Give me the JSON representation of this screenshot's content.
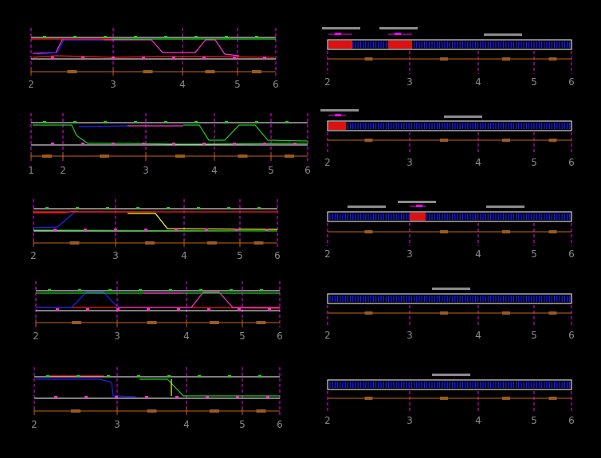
{
  "colors": {
    "background": "#000000",
    "frame": "#ffffff",
    "grid_magenta": "#ff00ff",
    "dim_orange": "#c8690a",
    "dim_tag": "#9a5a1e",
    "label_gray": "#8a8a8a",
    "tag_gray": "#8c8c8c",
    "red": "#ff1a1a",
    "blue": "#2222ff",
    "green": "#22cc22",
    "yellow": "#ffff22",
    "pink": "#ff33cc",
    "rebar_blue": "#1a1aff",
    "rebar_red": "#dd1111"
  },
  "left_panels": [
    {
      "id": "elevation-1",
      "axis_labels": [
        "2",
        "3",
        "4",
        "5",
        "6"
      ]
    },
    {
      "id": "elevation-2",
      "axis_labels": [
        "1",
        "2",
        "3",
        "4",
        "5",
        "6"
      ]
    },
    {
      "id": "elevation-3",
      "axis_labels": [
        "2",
        "3",
        "4",
        "5",
        "6"
      ]
    },
    {
      "id": "elevation-4",
      "axis_labels": [
        "2",
        "3",
        "4",
        "5",
        "6"
      ]
    },
    {
      "id": "elevation-5",
      "axis_labels": [
        "2",
        "3",
        "4",
        "5",
        "6"
      ]
    }
  ],
  "right_panels": [
    {
      "id": "section-1",
      "axis_labels": [
        "2",
        "3",
        "4",
        "5",
        "6"
      ]
    },
    {
      "id": "section-2",
      "axis_labels": [
        "2",
        "3",
        "4",
        "5",
        "6"
      ]
    },
    {
      "id": "section-3",
      "axis_labels": [
        "2",
        "3",
        "4",
        "5",
        "6"
      ]
    },
    {
      "id": "section-4",
      "axis_labels": [
        "2",
        "3",
        "4",
        "5",
        "6"
      ]
    },
    {
      "id": "section-5",
      "axis_labels": [
        "2",
        "3",
        "4",
        "5",
        "6"
      ]
    }
  ]
}
